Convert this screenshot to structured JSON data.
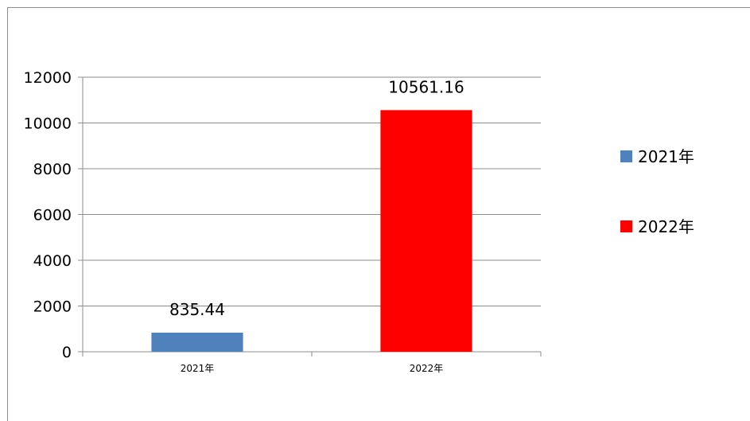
{
  "chart_data": {
    "type": "bar",
    "categories": [
      "2021年",
      "2022年"
    ],
    "values": [
      835.44,
      10561.16
    ],
    "data_labels": [
      "835.44",
      "10561.16"
    ],
    "colors": [
      "#4f81bd",
      "#ff0000"
    ],
    "legend": [
      "2021年",
      "2022年"
    ],
    "legend_position": "right",
    "ylim": [
      0,
      12000
    ],
    "yticks": [
      0,
      2000,
      4000,
      6000,
      8000,
      10000,
      12000
    ],
    "ytick_labels": [
      "0",
      "2000",
      "4000",
      "6000",
      "8000",
      "10000",
      "12000"
    ],
    "grid": true,
    "title": "",
    "xlabel": "",
    "ylabel": ""
  }
}
